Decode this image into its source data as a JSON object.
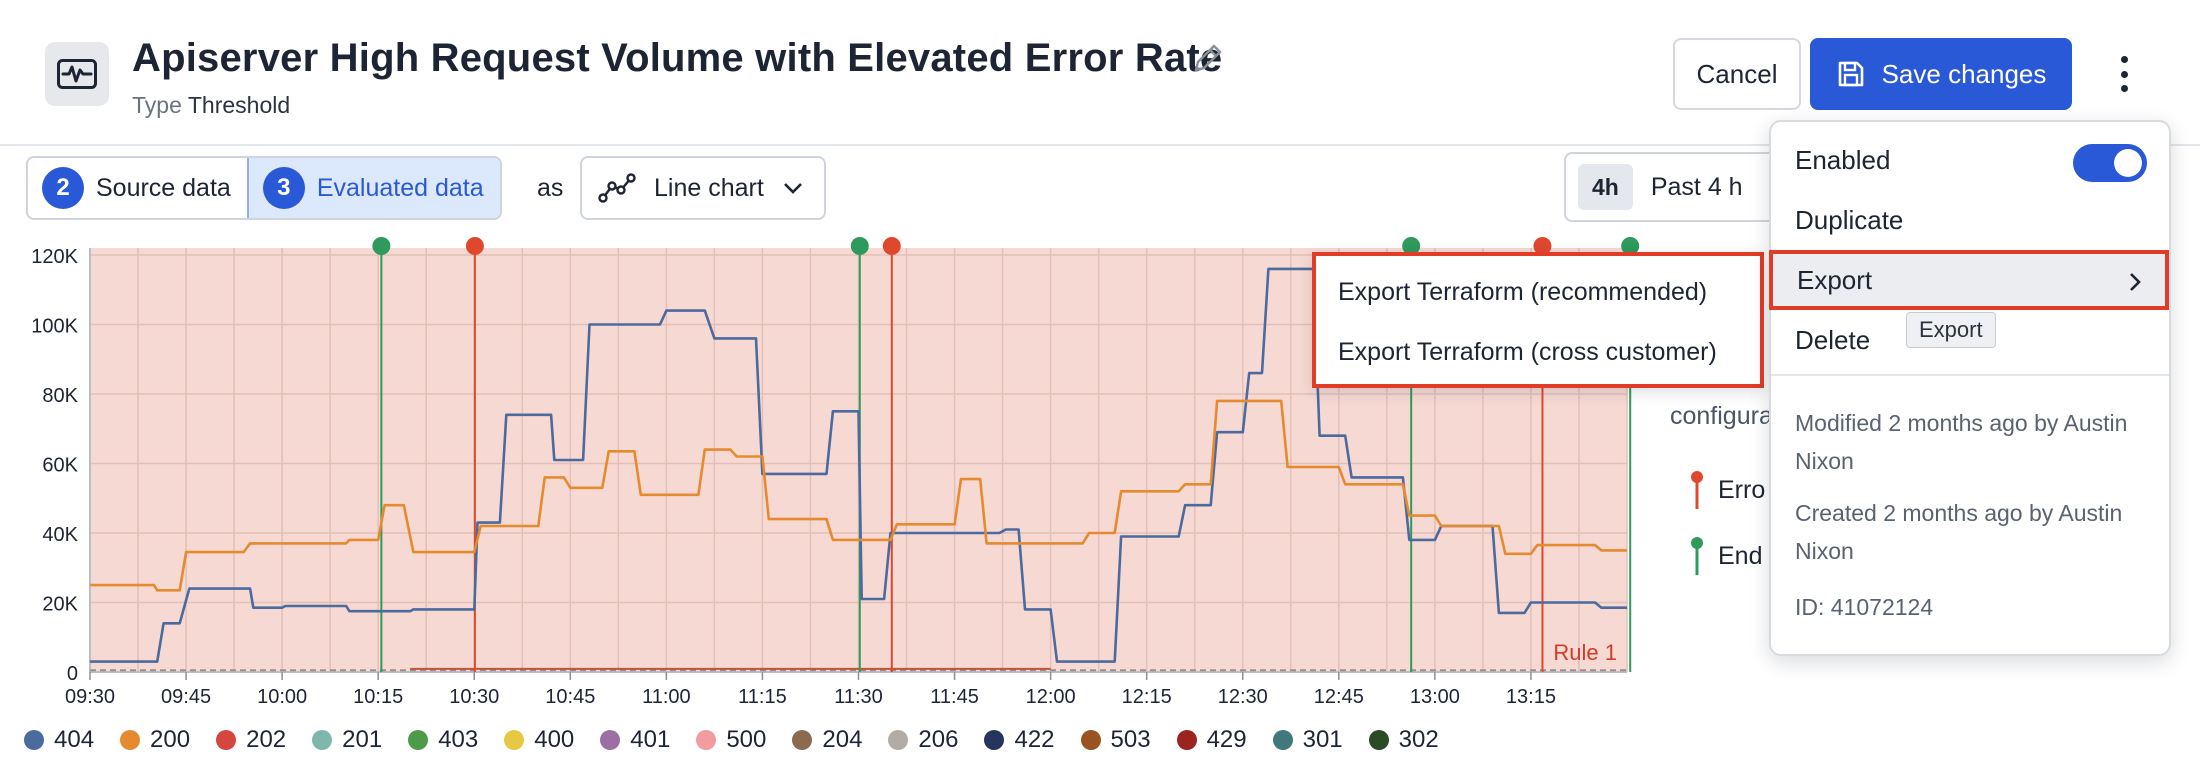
{
  "header": {
    "title": "Apiserver High Request Volume with Elevated Error Rate",
    "type_key": "Type",
    "type_value": "Threshold",
    "cancel_label": "Cancel",
    "save_label": "Save changes"
  },
  "toolbar": {
    "source_badge": "2",
    "source_label": "Source data",
    "evaluated_badge": "3",
    "evaluated_label": "Evaluated data",
    "as_label": "as",
    "viz_label": "Line chart",
    "time_chip": "4h",
    "time_label": "Past 4 h"
  },
  "background": {
    "config_text": "configura",
    "error_text": "Erro",
    "end_text": "End"
  },
  "menu": {
    "enabled_label": "Enabled",
    "enabled": true,
    "duplicate_label": "Duplicate",
    "export_label": "Export",
    "delete_label": "Delete",
    "tooltip": "Export",
    "modified": "Modified 2 months ago by Austin Nixon",
    "created": "Created 2 months ago by Austin Nixon",
    "id": "ID: 41072124"
  },
  "submenu": {
    "items": [
      "Export Terraform (recommended)",
      "Export Terraform (cross customer)"
    ]
  },
  "colors": {
    "accent": "#2a59d8",
    "alert_bg": "#f7d9d3",
    "highlight_border": "#e03c28",
    "error_marker": "#e0482e",
    "ok_marker": "#2e9a5c"
  },
  "chart_data": {
    "type": "line",
    "y_ticks": [
      "0",
      "20K",
      "40K",
      "60K",
      "80K",
      "100K",
      "120K"
    ],
    "ylim": [
      0,
      122000
    ],
    "x_ticks": [
      {
        "t": 0,
        "label": "09:30"
      },
      {
        "t": 15,
        "label": "09:45"
      },
      {
        "t": 30,
        "label": "10:00"
      },
      {
        "t": 45,
        "label": "10:15"
      },
      {
        "t": 60,
        "label": "10:30"
      },
      {
        "t": 75,
        "label": "10:45"
      },
      {
        "t": 90,
        "label": "11:00"
      },
      {
        "t": 105,
        "label": "11:15"
      },
      {
        "t": 120,
        "label": "11:30"
      },
      {
        "t": 135,
        "label": "11:45"
      },
      {
        "t": 150,
        "label": "12:00"
      },
      {
        "t": 165,
        "label": "12:15"
      },
      {
        "t": 180,
        "label": "12:30"
      },
      {
        "t": 195,
        "label": "12:45"
      },
      {
        "t": 210,
        "label": "13:00"
      },
      {
        "t": 225,
        "label": "13:15"
      }
    ],
    "xlim": [
      0,
      240
    ],
    "threshold_label": "Rule 1",
    "markers": [
      {
        "t": 45.5,
        "kind": "ok"
      },
      {
        "t": 60.1,
        "kind": "error"
      },
      {
        "t": 120.2,
        "kind": "ok"
      },
      {
        "t": 125.2,
        "kind": "error"
      },
      {
        "t": 206.3,
        "kind": "ok"
      },
      {
        "t": 226.8,
        "kind": "error"
      },
      {
        "t": 240.5,
        "kind": "ok"
      }
    ],
    "series": [
      {
        "name": "404",
        "color": "#4b6a9e",
        "points": [
          [
            0,
            3000
          ],
          [
            10.5,
            3000
          ],
          [
            11.5,
            14000
          ],
          [
            14,
            14000
          ],
          [
            15.5,
            24000
          ],
          [
            25,
            24000
          ],
          [
            25.5,
            18500
          ],
          [
            30,
            18500
          ],
          [
            30.5,
            19000
          ],
          [
            40,
            19000
          ],
          [
            40.5,
            17500
          ],
          [
            50,
            17500
          ],
          [
            50.5,
            18000
          ],
          [
            60,
            18000
          ],
          [
            60.5,
            43000
          ],
          [
            64,
            43000
          ],
          [
            65,
            74000
          ],
          [
            72,
            74000
          ],
          [
            72.5,
            61000
          ],
          [
            77,
            61000
          ],
          [
            78,
            100000
          ],
          [
            89,
            100000
          ],
          [
            90,
            104000
          ],
          [
            96,
            104000
          ],
          [
            97.5,
            96000
          ],
          [
            104,
            96000
          ],
          [
            105,
            57000
          ],
          [
            115,
            57000
          ],
          [
            116,
            75000
          ],
          [
            120,
            75000
          ],
          [
            120.5,
            21000
          ],
          [
            124,
            21000
          ],
          [
            125,
            40000
          ],
          [
            142,
            40000
          ],
          [
            143,
            41000
          ],
          [
            145,
            41000
          ],
          [
            146,
            18000
          ],
          [
            150,
            18000
          ],
          [
            151,
            3000
          ],
          [
            160,
            3000
          ],
          [
            161,
            39000
          ],
          [
            170,
            39000
          ],
          [
            171,
            48000
          ],
          [
            175,
            48000
          ],
          [
            176,
            69000
          ],
          [
            180,
            69000
          ],
          [
            181,
            86000
          ],
          [
            183,
            86000
          ],
          [
            184,
            116000
          ],
          [
            191,
            116000
          ],
          [
            192,
            68000
          ],
          [
            196,
            68000
          ],
          [
            197,
            56000
          ],
          [
            205,
            56000
          ],
          [
            206,
            38000
          ],
          [
            210,
            38000
          ],
          [
            211,
            42000
          ],
          [
            219,
            42000
          ],
          [
            220,
            17000
          ],
          [
            224,
            17000
          ],
          [
            225,
            20000
          ],
          [
            235,
            20000
          ],
          [
            236,
            18500
          ],
          [
            240,
            18500
          ]
        ]
      },
      {
        "name": "200",
        "color": "#e58a2e",
        "points": [
          [
            0,
            25000
          ],
          [
            10,
            25000
          ],
          [
            10.5,
            23500
          ],
          [
            14,
            23500
          ],
          [
            15,
            34500
          ],
          [
            24,
            34500
          ],
          [
            25,
            37000
          ],
          [
            40,
            37000
          ],
          [
            40.5,
            38000
          ],
          [
            45,
            38000
          ],
          [
            46,
            48000
          ],
          [
            49,
            48000
          ],
          [
            50.5,
            34500
          ],
          [
            60,
            34500
          ],
          [
            61,
            42000
          ],
          [
            70,
            42000
          ],
          [
            71,
            56000
          ],
          [
            74,
            56000
          ],
          [
            75,
            53000
          ],
          [
            80,
            53000
          ],
          [
            81,
            63500
          ],
          [
            85,
            63500
          ],
          [
            86,
            51000
          ],
          [
            95,
            51000
          ],
          [
            96,
            64000
          ],
          [
            100,
            64000
          ],
          [
            101,
            62000
          ],
          [
            105,
            62000
          ],
          [
            106,
            44000
          ],
          [
            115,
            44000
          ],
          [
            116,
            38000
          ],
          [
            125,
            38000
          ],
          [
            126,
            42500
          ],
          [
            135,
            42500
          ],
          [
            136,
            55500
          ],
          [
            139,
            55500
          ],
          [
            140,
            37000
          ],
          [
            155,
            37000
          ],
          [
            156,
            40000
          ],
          [
            160,
            40000
          ],
          [
            161,
            52000
          ],
          [
            170,
            52000
          ],
          [
            171,
            54000
          ],
          [
            175,
            54000
          ],
          [
            176,
            78000
          ],
          [
            186,
            78000
          ],
          [
            187,
            59000
          ],
          [
            195,
            59000
          ],
          [
            196,
            54000
          ],
          [
            205,
            54000
          ],
          [
            206,
            45000
          ],
          [
            210,
            45000
          ],
          [
            211,
            42000
          ],
          [
            220,
            42000
          ],
          [
            221,
            34000
          ],
          [
            225,
            34000
          ],
          [
            226,
            36500
          ],
          [
            235,
            36500
          ],
          [
            236,
            35000
          ],
          [
            240,
            35000
          ]
        ]
      }
    ],
    "legend": [
      {
        "name": "404",
        "color": "#4b6a9e"
      },
      {
        "name": "200",
        "color": "#e58a2e"
      },
      {
        "name": "202",
        "color": "#d4463e"
      },
      {
        "name": "201",
        "color": "#7fb7ad"
      },
      {
        "name": "403",
        "color": "#4d9a48"
      },
      {
        "name": "400",
        "color": "#e6c844"
      },
      {
        "name": "401",
        "color": "#9b6fa3"
      },
      {
        "name": "500",
        "color": "#f29ba0"
      },
      {
        "name": "204",
        "color": "#8c6a4f"
      },
      {
        "name": "206",
        "color": "#b3aba6"
      },
      {
        "name": "422",
        "color": "#25355e"
      },
      {
        "name": "503",
        "color": "#9a5320"
      },
      {
        "name": "429",
        "color": "#9b2420"
      },
      {
        "name": "301",
        "color": "#41787c"
      },
      {
        "name": "302",
        "color": "#2b4a26"
      }
    ]
  }
}
